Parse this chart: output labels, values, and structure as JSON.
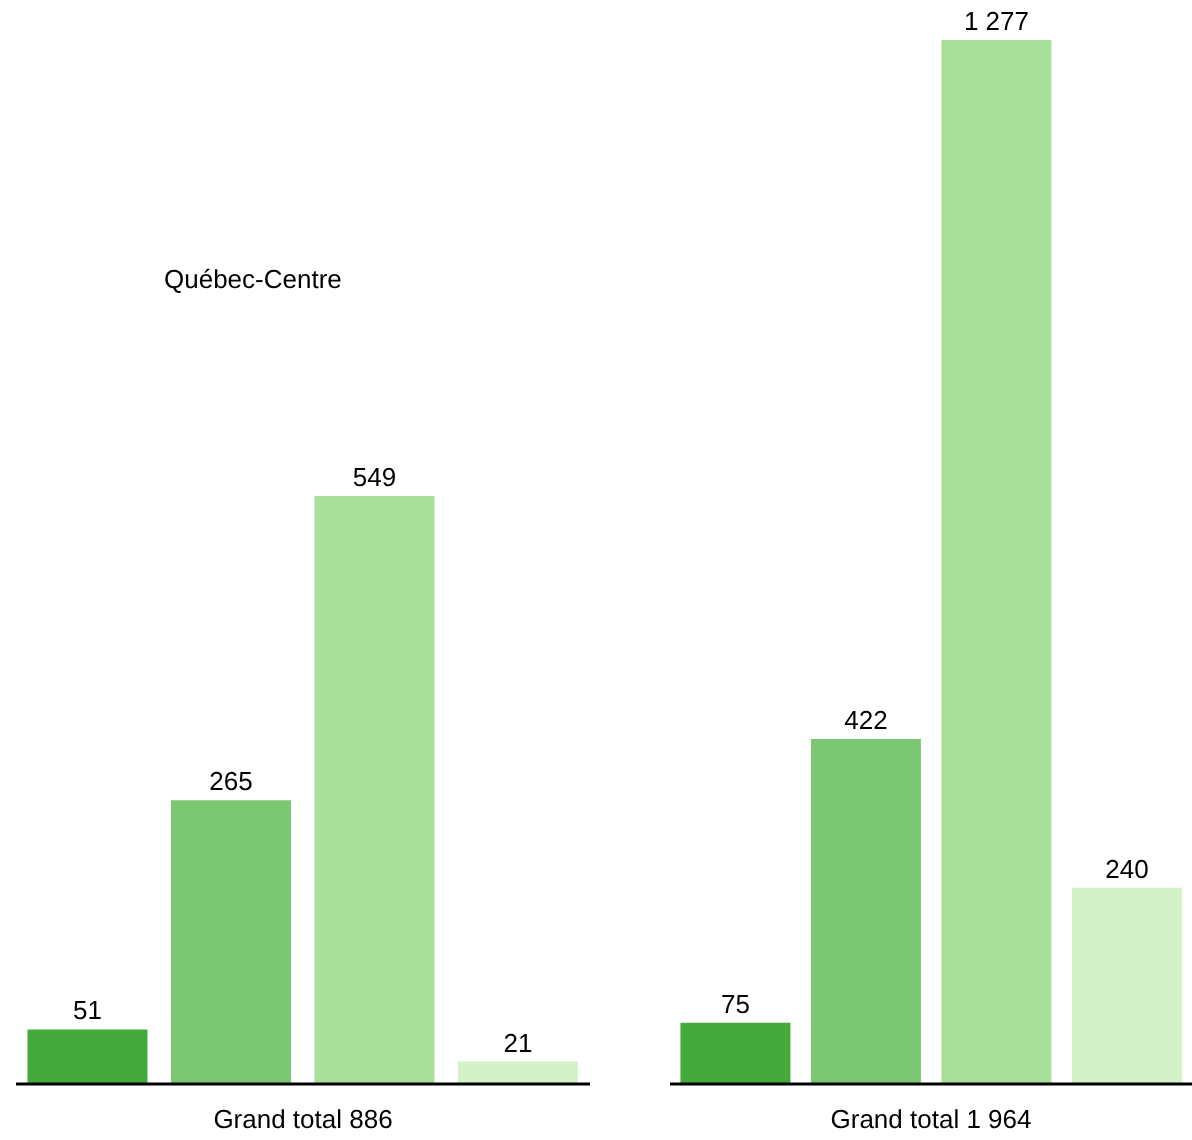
{
  "chart_data": [
    {
      "type": "bar",
      "title": "Québec-Centre",
      "xlabel": "Grand total 886",
      "categories": [
        null,
        null,
        null,
        null
      ],
      "values": [
        51,
        265,
        549,
        21
      ],
      "colors": [
        "#44aa3c",
        "#7cc872",
        "#a8e09a",
        "#d4f2c8"
      ],
      "data_labels": true
    },
    {
      "type": "bar",
      "xlabel": "Grand total 1 964",
      "categories": [
        null,
        null,
        null,
        null
      ],
      "values": [
        75,
        422,
        1277,
        240
      ],
      "colors": [
        "#44aa3c",
        "#7cc872",
        "#a8e09a",
        "#d4f2c8"
      ],
      "data_labels": true
    }
  ]
}
